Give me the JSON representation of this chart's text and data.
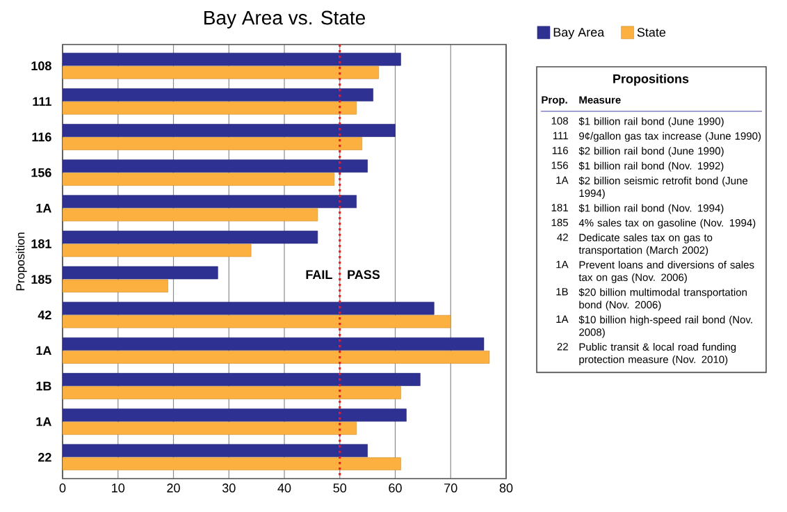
{
  "chart_data": {
    "type": "bar",
    "orientation": "horizontal",
    "title": "Bay Area vs. State",
    "ylabel": "Proposition",
    "categories": [
      "108",
      "111",
      "116",
      "156",
      "1A",
      "181",
      "185",
      "42",
      "1A",
      "1B",
      "1A",
      "22"
    ],
    "series": [
      {
        "name": "Bay Area",
        "color": "#2e3192",
        "values": [
          61,
          56,
          60,
          55,
          53,
          46,
          28,
          67,
          76,
          64.5,
          62,
          55
        ]
      },
      {
        "name": "State",
        "color": "#fbb040",
        "values": [
          57,
          53,
          54,
          49,
          46,
          34,
          19,
          70,
          77,
          61,
          53,
          61
        ]
      }
    ],
    "xlim": [
      0,
      80
    ],
    "xticks": [
      0,
      10,
      20,
      30,
      40,
      50,
      60,
      70,
      80
    ],
    "grid": "x",
    "legend": "top right",
    "ref_lines": [
      {
        "axis": "x",
        "value": 50,
        "color": "#ed1c24",
        "line_style": "dotted"
      }
    ],
    "annotations": [
      "FAIL",
      "PASS",
      "Propositions",
      "Prop.",
      "Measure",
      "108",
      "$1 billion rail bond (June 1990)",
      "111",
      "9¢/gallon gas tax increase (June 1990)",
      "116",
      "$2 billion rail bond (June 1990)",
      "156",
      "$1 billion rail bond (Nov. 1992)",
      "1A",
      "$2 billion seismic retrofit bond (June 1994)",
      "181",
      "$1 billion rail bond (Nov. 1994)",
      "185",
      "4% sales tax on gasoline (Nov. 1994)",
      "42",
      "Dedicate sales tax on gas to transportation (March 2002)",
      "1A",
      "Prevent loans and diversions of sales tax on gas (Nov. 2006)",
      "1B",
      "$20 billion multimodal transportation bond (Nov. 2006)",
      "1A",
      "$10 billion high-speed rail bond (Nov. 2008)",
      "22",
      "Public transit & local road funding protection measure (Nov. 2010)"
    ]
  }
}
